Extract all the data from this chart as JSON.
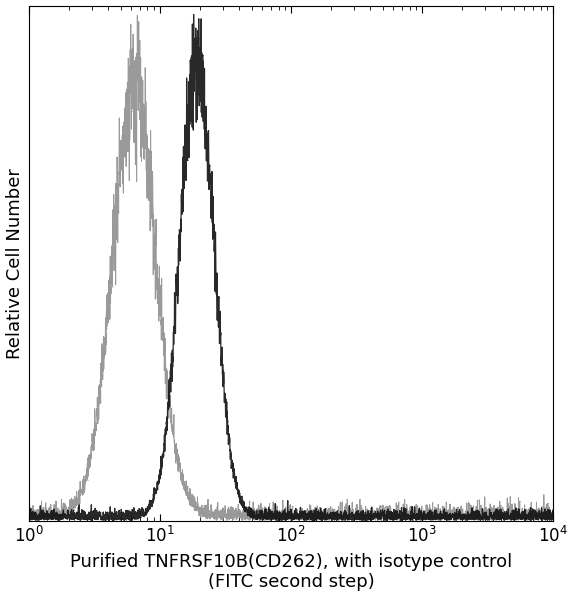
{
  "xlabel_line1": "Purified TNFRSF10B(CD262), with isotype control",
  "xlabel_line2": "(FITC second step)",
  "ylabel": "Relative Cell Number",
  "background_color": "#ffffff",
  "isotype_color": "#888888",
  "antibody_color": "#111111",
  "isotype_peak_log": 0.8,
  "antibody_peak_log": 1.28,
  "isotype_sigma_log": 0.165,
  "antibody_sigma_log": 0.13,
  "noise_seed": 7,
  "xlabel_fontsize": 13,
  "ylabel_fontsize": 13,
  "tick_fontsize": 12
}
